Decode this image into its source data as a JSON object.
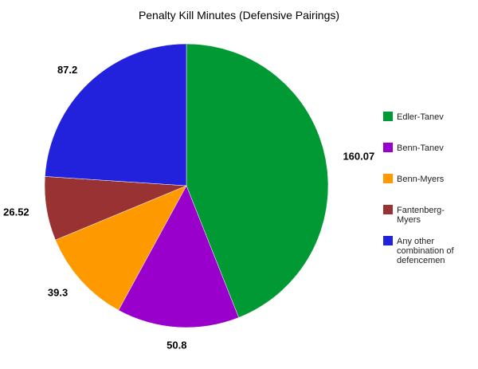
{
  "chart_data": {
    "type": "pie",
    "title": "Penalty Kill Minutes (Defensive Pairings)",
    "legend_position": "right",
    "slices": [
      {
        "label": "Edler-Tanev",
        "legend_lines": [
          "Edler-Tanev"
        ],
        "value": 160.07,
        "value_label": "160.07",
        "color": "#009933"
      },
      {
        "label": "Benn-Tanev",
        "legend_lines": [
          "Benn-Tanev"
        ],
        "value": 50.8,
        "value_label": "50.8",
        "color": "#9900cc"
      },
      {
        "label": "Benn-Myers",
        "legend_lines": [
          "Benn-Myers"
        ],
        "value": 39.3,
        "value_label": "39.3",
        "color": "#ff9900"
      },
      {
        "label": "Fantenberg-Myers",
        "legend_lines": [
          "Fantenberg-",
          "Myers"
        ],
        "value": 26.52,
        "value_label": "26.52",
        "color": "#993333"
      },
      {
        "label": "Any other combination of defencemen",
        "legend_lines": [
          "Any other",
          "combination of",
          "defencemen"
        ],
        "value": 87.2,
        "value_label": "87.2",
        "color": "#2222dd"
      }
    ]
  }
}
